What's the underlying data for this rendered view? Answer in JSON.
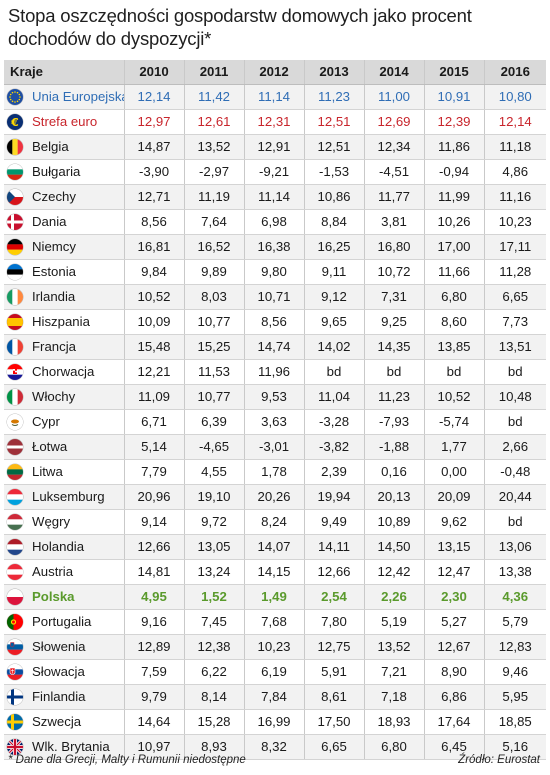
{
  "title": "Stopa oszczędności gospodarstw domowych jako procent dochodów do dyspozycji*",
  "footnote": "* Dane dla Grecji, Malty i Rumunii niedostępne",
  "source": "Źródło: Eurostat",
  "chart_data": {
    "type": "table",
    "columns": [
      "Kraje",
      "2010",
      "2011",
      "2012",
      "2013",
      "2014",
      "2015",
      "2016"
    ],
    "rows": [
      {
        "country": "Unia Europejska",
        "flag": "eu-flag-icon",
        "style": "blue",
        "values": [
          "12,14",
          "11,42",
          "11,14",
          "11,23",
          "11,00",
          "10,91",
          "10,80"
        ]
      },
      {
        "country": "Strefa euro",
        "flag": "euro-icon",
        "style": "red",
        "values": [
          "12,97",
          "12,61",
          "12,31",
          "12,51",
          "12,69",
          "12,39",
          "12,14"
        ]
      },
      {
        "country": "Belgia",
        "flag": "flag-be-icon",
        "style": "",
        "values": [
          "14,87",
          "13,52",
          "12,91",
          "12,51",
          "12,34",
          "11,86",
          "11,18"
        ]
      },
      {
        "country": "Bułgaria",
        "flag": "flag-bg-icon",
        "style": "",
        "values": [
          "-3,90",
          "-2,97",
          "-9,21",
          "-1,53",
          "-4,51",
          "-0,94",
          "4,86"
        ]
      },
      {
        "country": "Czechy",
        "flag": "flag-cz-icon",
        "style": "",
        "values": [
          "12,71",
          "11,19",
          "11,14",
          "10,86",
          "11,77",
          "11,99",
          "11,16"
        ]
      },
      {
        "country": "Dania",
        "flag": "flag-dk-icon",
        "style": "",
        "values": [
          "8,56",
          "7,64",
          "6,98",
          "8,84",
          "3,81",
          "10,26",
          "10,23"
        ]
      },
      {
        "country": "Niemcy",
        "flag": "flag-de-icon",
        "style": "",
        "values": [
          "16,81",
          "16,52",
          "16,38",
          "16,25",
          "16,80",
          "17,00",
          "17,11"
        ]
      },
      {
        "country": "Estonia",
        "flag": "flag-ee-icon",
        "style": "",
        "values": [
          "9,84",
          "9,89",
          "9,80",
          "9,11",
          "10,72",
          "11,66",
          "11,28"
        ]
      },
      {
        "country": "Irlandia",
        "flag": "flag-ie-icon",
        "style": "",
        "values": [
          "10,52",
          "8,03",
          "10,71",
          "9,12",
          "7,31",
          "6,80",
          "6,65"
        ]
      },
      {
        "country": "Hiszpania",
        "flag": "flag-es-icon",
        "style": "",
        "values": [
          "10,09",
          "10,77",
          "8,56",
          "9,65",
          "9,25",
          "8,60",
          "7,73"
        ]
      },
      {
        "country": "Francja",
        "flag": "flag-fr-icon",
        "style": "",
        "values": [
          "15,48",
          "15,25",
          "14,74",
          "14,02",
          "14,35",
          "13,85",
          "13,51"
        ]
      },
      {
        "country": "Chorwacja",
        "flag": "flag-hr-icon",
        "style": "",
        "values": [
          "12,21",
          "11,53",
          "11,96",
          "bd",
          "bd",
          "bd",
          "bd"
        ]
      },
      {
        "country": "Włochy",
        "flag": "flag-it-icon",
        "style": "",
        "values": [
          "11,09",
          "10,77",
          "9,53",
          "11,04",
          "11,23",
          "10,52",
          "10,48"
        ]
      },
      {
        "country": "Cypr",
        "flag": "flag-cy-icon",
        "style": "",
        "values": [
          "6,71",
          "6,39",
          "3,63",
          "-3,28",
          "-7,93",
          "-5,74",
          "bd"
        ]
      },
      {
        "country": "Łotwa",
        "flag": "flag-lv-icon",
        "style": "",
        "values": [
          "5,14",
          "-4,65",
          "-3,01",
          "-3,82",
          "-1,88",
          "1,77",
          "2,66"
        ]
      },
      {
        "country": "Litwa",
        "flag": "flag-lt-icon",
        "style": "",
        "values": [
          "7,79",
          "4,55",
          "1,78",
          "2,39",
          "0,16",
          "0,00",
          "-0,48"
        ]
      },
      {
        "country": "Luksemburg",
        "flag": "flag-lu-icon",
        "style": "",
        "values": [
          "20,96",
          "19,10",
          "20,26",
          "19,94",
          "20,13",
          "20,09",
          "20,44"
        ]
      },
      {
        "country": "Węgry",
        "flag": "flag-hu-icon",
        "style": "",
        "values": [
          "9,14",
          "9,72",
          "8,24",
          "9,49",
          "10,89",
          "9,62",
          "bd"
        ]
      },
      {
        "country": "Holandia",
        "flag": "flag-nl-icon",
        "style": "",
        "values": [
          "12,66",
          "13,05",
          "14,07",
          "14,11",
          "14,50",
          "13,15",
          "13,06"
        ]
      },
      {
        "country": "Austria",
        "flag": "flag-at-icon",
        "style": "",
        "values": [
          "14,81",
          "13,24",
          "14,15",
          "12,66",
          "12,42",
          "12,47",
          "13,38"
        ]
      },
      {
        "country": "Polska",
        "flag": "flag-pl-icon",
        "style": "green",
        "values": [
          "4,95",
          "1,52",
          "1,49",
          "2,54",
          "2,26",
          "2,30",
          "4,36"
        ]
      },
      {
        "country": "Portugalia",
        "flag": "flag-pt-icon",
        "style": "",
        "values": [
          "9,16",
          "7,45",
          "7,68",
          "7,80",
          "5,19",
          "5,27",
          "5,79"
        ]
      },
      {
        "country": "Słowenia",
        "flag": "flag-si-icon",
        "style": "",
        "values": [
          "12,89",
          "12,38",
          "10,23",
          "12,75",
          "13,52",
          "12,67",
          "12,83"
        ]
      },
      {
        "country": "Słowacja",
        "flag": "flag-sk-icon",
        "style": "",
        "values": [
          "7,59",
          "6,22",
          "6,19",
          "5,91",
          "7,21",
          "8,90",
          "9,46"
        ]
      },
      {
        "country": "Finlandia",
        "flag": "flag-fi-icon",
        "style": "",
        "values": [
          "9,79",
          "8,14",
          "7,84",
          "8,61",
          "7,18",
          "6,86",
          "5,95"
        ]
      },
      {
        "country": "Szwecja",
        "flag": "flag-se-icon",
        "style": "",
        "values": [
          "14,64",
          "15,28",
          "16,99",
          "17,50",
          "18,93",
          "17,64",
          "18,85"
        ]
      },
      {
        "country": "Wlk. Brytania",
        "flag": "flag-gb-icon",
        "style": "",
        "values": [
          "10,97",
          "8,93",
          "8,32",
          "6,65",
          "6,80",
          "6,45",
          "5,16"
        ]
      }
    ]
  },
  "colors": {
    "header_bg": "#d9d9d9",
    "row_alt": "#f2f2f2",
    "eu_text": "#2f6db5",
    "euro_text": "#c8252c",
    "poland_text": "#5a9a2c"
  }
}
